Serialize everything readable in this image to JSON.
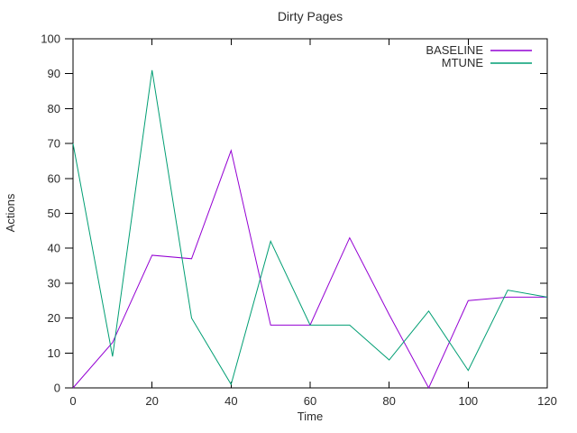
{
  "window": {
    "background": "#ffffff"
  },
  "chart_data": {
    "type": "line",
    "title": "Dirty Pages",
    "xlabel": "Time",
    "ylabel": "Actions",
    "xlim": [
      0,
      120
    ],
    "ylim": [
      0,
      100
    ],
    "xticks": [
      0,
      20,
      40,
      60,
      80,
      100,
      120
    ],
    "yticks": [
      0,
      10,
      20,
      30,
      40,
      50,
      60,
      70,
      80,
      90,
      100
    ],
    "grid": false,
    "legend_position": "top-right",
    "x": [
      0,
      10,
      20,
      30,
      40,
      50,
      60,
      70,
      80,
      90,
      100,
      110,
      120
    ],
    "series": [
      {
        "name": "BASELINE",
        "color": "#9400D3",
        "values": [
          0,
          13,
          38,
          37,
          68,
          18,
          18,
          43,
          21,
          0,
          25,
          26,
          26
        ]
      },
      {
        "name": "MTUNE",
        "color": "#009E73",
        "values": [
          70,
          9,
          91,
          20,
          1,
          42,
          18,
          18,
          8,
          22,
          5,
          28,
          26
        ]
      }
    ],
    "axis_color": "#000000",
    "text_color": "#2b2b2b"
  }
}
